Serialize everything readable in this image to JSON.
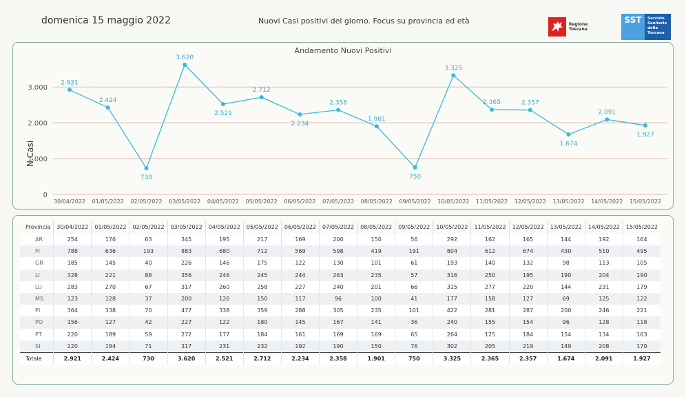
{
  "header": {
    "date": "domenica 15 maggio 2022",
    "subtitle": "Nuovi Casi positivi del giorno. Focus su provincia ed età",
    "logo_rt": "Regione Toscana",
    "logo_sst_mark": "SST",
    "logo_sst_text": "Servizio Sanitario della Toscana"
  },
  "chart_data": {
    "type": "line",
    "title": "Andamento Nuovi Positivi",
    "xlabel": "",
    "ylabel": "N.Casi",
    "ylim": [
      0,
      3620
    ],
    "yticks": [
      "0",
      "1.000",
      "2.000",
      "3.000"
    ],
    "grid": true,
    "color": "#39b9dc",
    "x": [
      "30/04/2022",
      "01/05/2022",
      "02/05/2022",
      "03/05/2022",
      "04/05/2022",
      "05/05/2022",
      "06/05/2022",
      "07/05/2022",
      "08/05/2022",
      "09/05/2022",
      "10/05/2022",
      "11/05/2022",
      "12/05/2022",
      "13/05/2022",
      "14/05/2022",
      "15/05/2022"
    ],
    "values": [
      2921,
      2424,
      730,
      3620,
      2521,
      2712,
      2234,
      2358,
      1901,
      750,
      3325,
      2365,
      2357,
      1674,
      2091,
      1927
    ],
    "labels": [
      "2.921",
      "2.424",
      "730",
      "3.620",
      "2.521",
      "2.712",
      "2.234",
      "2.358",
      "1.901",
      "750",
      "3.325",
      "2.365",
      "2.357",
      "1.674",
      "2.091",
      "1.927"
    ]
  },
  "table": {
    "corner": "Provincia",
    "columns": [
      "30/04/2022",
      "01/05/2022",
      "02/05/2022",
      "03/05/2022",
      "04/05/2022",
      "05/05/2022",
      "06/05/2022",
      "07/05/2022",
      "08/05/2022",
      "09/05/2022",
      "10/05/2022",
      "11/05/2022",
      "12/05/2022",
      "13/05/2022",
      "14/05/2022",
      "15/05/2022"
    ],
    "rows": [
      {
        "name": "AR",
        "values": [
          "254",
          "176",
          "63",
          "345",
          "195",
          "217",
          "169",
          "200",
          "150",
          "56",
          "292",
          "162",
          "165",
          "144",
          "192",
          "164"
        ]
      },
      {
        "name": "FI",
        "values": [
          "788",
          "636",
          "193",
          "883",
          "680",
          "712",
          "569",
          "598",
          "419",
          "191",
          "804",
          "612",
          "674",
          "430",
          "510",
          "495"
        ]
      },
      {
        "name": "GR",
        "values": [
          "185",
          "145",
          "40",
          "226",
          "146",
          "175",
          "122",
          "130",
          "101",
          "61",
          "193",
          "140",
          "132",
          "98",
          "113",
          "105"
        ]
      },
      {
        "name": "LI",
        "values": [
          "328",
          "221",
          "88",
          "356",
          "246",
          "245",
          "244",
          "263",
          "235",
          "57",
          "316",
          "250",
          "195",
          "190",
          "204",
          "190"
        ]
      },
      {
        "name": "LU",
        "values": [
          "283",
          "270",
          "67",
          "317",
          "260",
          "258",
          "227",
          "240",
          "201",
          "66",
          "315",
          "277",
          "220",
          "144",
          "231",
          "179"
        ]
      },
      {
        "name": "MS",
        "values": [
          "123",
          "128",
          "37",
          "200",
          "126",
          "150",
          "117",
          "96",
          "100",
          "41",
          "177",
          "158",
          "127",
          "69",
          "125",
          "122"
        ]
      },
      {
        "name": "PI",
        "values": [
          "364",
          "338",
          "70",
          "477",
          "338",
          "359",
          "288",
          "305",
          "235",
          "101",
          "422",
          "281",
          "287",
          "200",
          "246",
          "221"
        ]
      },
      {
        "name": "PO",
        "values": [
          "156",
          "127",
          "42",
          "227",
          "122",
          "180",
          "145",
          "167",
          "141",
          "36",
          "240",
          "155",
          "154",
          "96",
          "128",
          "118"
        ]
      },
      {
        "name": "PT",
        "values": [
          "220",
          "189",
          "59",
          "272",
          "177",
          "184",
          "161",
          "169",
          "169",
          "65",
          "264",
          "125",
          "184",
          "154",
          "134",
          "163"
        ]
      },
      {
        "name": "SI",
        "values": [
          "220",
          "194",
          "71",
          "317",
          "231",
          "232",
          "192",
          "190",
          "150",
          "76",
          "302",
          "205",
          "219",
          "149",
          "208",
          "170"
        ]
      }
    ],
    "total": {
      "name": "Totale",
      "values": [
        "2.921",
        "2.424",
        "730",
        "3.620",
        "2.521",
        "2.712",
        "2.234",
        "2.358",
        "1.901",
        "750",
        "3.325",
        "2.365",
        "2.357",
        "1.674",
        "2.091",
        "1.927"
      ]
    }
  }
}
